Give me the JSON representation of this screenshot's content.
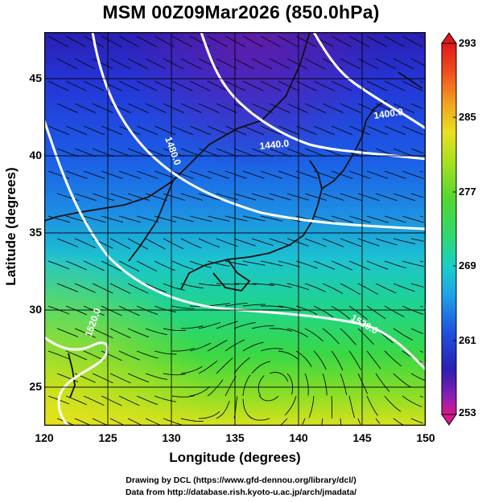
{
  "title": "MSM 00Z09Mar2026 (850.0hPa)",
  "xlabel": "Longitude (degrees)",
  "ylabel": "Latitude  (degrees)",
  "x_ticks": [
    "120",
    "125",
    "130",
    "135",
    "140",
    "145",
    "150"
  ],
  "y_ticks": [
    "45",
    "40",
    "35",
    "30",
    "25"
  ],
  "colorbar": {
    "ticks": [
      "293",
      "285",
      "277",
      "269",
      "261",
      "253"
    ],
    "min": 253,
    "max": 293,
    "colors": [
      "#d8188c",
      "#8a1eb5",
      "#2b1fb0",
      "#1e50e0",
      "#1fa0e8",
      "#18d0c8",
      "#30d870",
      "#50d830",
      "#a8e020",
      "#e8e020",
      "#f0a020",
      "#f05020",
      "#e01818"
    ]
  },
  "contour_labels": [
    "1400.0",
    "1440.0",
    "1480.0",
    "1520.0",
    "1520.0"
  ],
  "credits": {
    "line1": "Drawing by DCL (https://www.gfd-dennou.org/library/dcl/)",
    "line2": "Data from http://database.rish.kyoto-u.ac.jp/arch/jmadata/"
  },
  "map": {
    "lon_range": [
      120,
      150
    ],
    "lat_range": [
      22.5,
      48
    ]
  }
}
